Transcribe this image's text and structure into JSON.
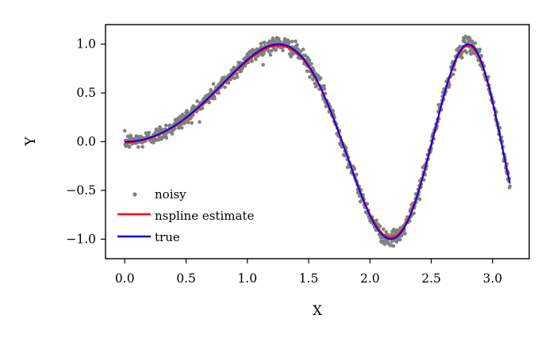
{
  "chart_data": {
    "type": "scatter+line",
    "title": "",
    "xlabel": "X",
    "ylabel": "Y",
    "xlim": [
      -0.157,
      3.299
    ],
    "ylim": [
      -1.2,
      1.2
    ],
    "xticks": [
      0.0,
      0.5,
      1.0,
      1.5,
      2.0,
      2.5,
      3.0
    ],
    "xtick_labels": [
      "0.0",
      "0.5",
      "1.0",
      "1.5",
      "2.0",
      "2.5",
      "3.0"
    ],
    "yticks": [
      -1.0,
      -0.5,
      0.0,
      0.5,
      1.0
    ],
    "ytick_labels": [
      "−1.0",
      "−0.5",
      "0.0",
      "0.5",
      "1.0"
    ],
    "grid": false,
    "legend_position": "lower-left",
    "function": "y = sin(x^2), x from 0 to pi",
    "series": [
      {
        "name": "noisy",
        "kind": "scatter",
        "color": "#808080",
        "n_points": 1000,
        "noise_std": 0.04,
        "x_range": [
          0.0,
          3.1416
        ]
      },
      {
        "name": "nspline estimate",
        "kind": "line",
        "color": "#ff0000",
        "x": [
          0.0,
          0.25,
          0.5,
          0.75,
          1.0,
          1.25,
          1.5,
          1.75,
          2.0,
          2.25,
          2.5,
          2.75,
          3.0,
          3.14
        ],
        "y": [
          -0.02,
          0.06,
          0.24,
          0.53,
          0.84,
          0.99,
          0.78,
          0.06,
          -0.75,
          -0.95,
          0.03,
          0.96,
          0.4,
          -0.4
        ]
      },
      {
        "name": "true",
        "kind": "line",
        "color": "#0000ff",
        "x": [
          0.0,
          0.25,
          0.5,
          0.75,
          1.0,
          1.25,
          1.5,
          1.75,
          2.0,
          2.25,
          2.5,
          2.75,
          3.0,
          3.14
        ],
        "y": [
          0.0,
          0.062,
          0.247,
          0.533,
          0.841,
          1.0,
          0.778,
          0.062,
          -0.757,
          -0.952,
          0.033,
          0.962,
          0.412,
          -0.43
        ]
      }
    ]
  }
}
